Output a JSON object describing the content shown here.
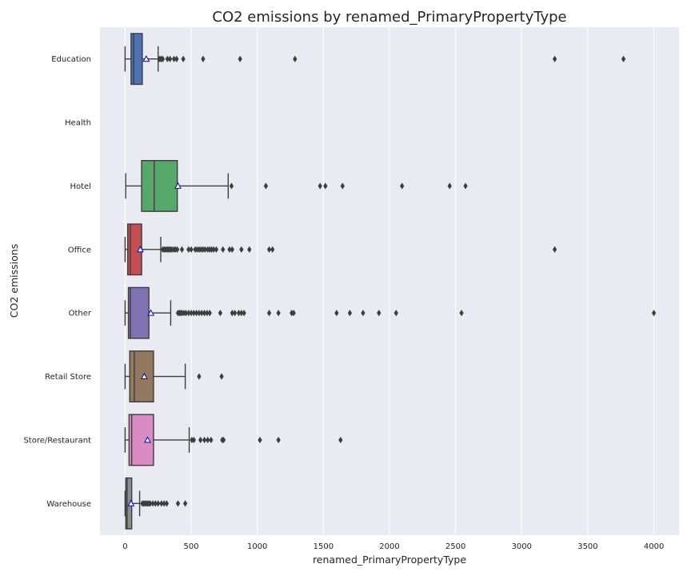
{
  "chart_data": {
    "type": "boxplot",
    "orientation": "horizontal",
    "title": "CO2 emissions by renamed_PrimaryPropertyType",
    "xlabel": "renamed_PrimaryPropertyType",
    "ylabel": "CO2 emissions",
    "xlim": [
      -190,
      4190
    ],
    "xticks": [
      0,
      500,
      1000,
      1500,
      2000,
      2500,
      3000,
      3500,
      4000
    ],
    "grid": true,
    "legend": "none",
    "mean_marker_color": "#0000cc",
    "categories": [
      {
        "name": "Education",
        "color": "#4c72b0",
        "whisker_low": 0,
        "q1": 45,
        "median": 65,
        "q3": 130,
        "whisker_high": 250,
        "mean": 160,
        "outliers": [
          260,
          270,
          275,
          285,
          320,
          340,
          370,
          390,
          440,
          590,
          870,
          1285,
          3250,
          3770
        ]
      },
      {
        "name": "Health",
        "color": "#dd8452",
        "whisker_low": null,
        "q1": null,
        "median": null,
        "q3": null,
        "whisker_high": null,
        "mean": null,
        "outliers": []
      },
      {
        "name": "Hotel",
        "color": "#55a868",
        "whisker_low": 5,
        "q1": 125,
        "median": 220,
        "q3": 395,
        "whisker_high": 780,
        "mean": 400,
        "outliers": [
          805,
          1065,
          1475,
          1515,
          1645,
          2095,
          2455,
          2575
        ]
      },
      {
        "name": "Office",
        "color": "#c44e52",
        "whisker_low": 0,
        "q1": 20,
        "median": 40,
        "q3": 125,
        "whisker_high": 270,
        "mean": 115,
        "outliers": [
          285,
          295,
          305,
          315,
          325,
          335,
          345,
          355,
          370,
          380,
          395,
          430,
          480,
          500,
          530,
          545,
          560,
          575,
          590,
          605,
          625,
          640,
          655,
          670,
          690,
          740,
          790,
          810,
          880,
          940,
          1090,
          1115,
          3250
        ]
      },
      {
        "name": "Other",
        "color": "#8172b3",
        "whisker_low": 0,
        "q1": 25,
        "median": 40,
        "q3": 180,
        "whisker_high": 345,
        "mean": 195,
        "outliers": [
          400,
          410,
          420,
          430,
          445,
          460,
          480,
          500,
          520,
          540,
          560,
          580,
          600,
          620,
          640,
          720,
          810,
          830,
          860,
          880,
          900,
          1090,
          1160,
          1260,
          1275,
          1600,
          1700,
          1800,
          1920,
          2050,
          2545,
          4000
        ]
      },
      {
        "name": "Retail Store",
        "color": "#937860",
        "whisker_low": 0,
        "q1": 35,
        "median": 70,
        "q3": 215,
        "whisker_high": 455,
        "mean": 145,
        "outliers": [
          560,
          730
        ]
      },
      {
        "name": "Store/Restaurant",
        "color": "#da8bc3",
        "whisker_low": 0,
        "q1": 30,
        "median": 50,
        "q3": 215,
        "whisker_high": 485,
        "mean": 170,
        "outliers": [
          505,
          520,
          570,
          600,
          625,
          650,
          735,
          745,
          1020,
          1160,
          1630
        ]
      },
      {
        "name": "Warehouse",
        "color": "#8c8c8c",
        "whisker_low": 0,
        "q1": 5,
        "median": 15,
        "q3": 50,
        "whisker_high": 110,
        "mean": 45,
        "outliers": [
          130,
          140,
          150,
          160,
          170,
          180,
          190,
          210,
          230,
          250,
          275,
          295,
          315,
          400,
          455
        ]
      }
    ]
  }
}
